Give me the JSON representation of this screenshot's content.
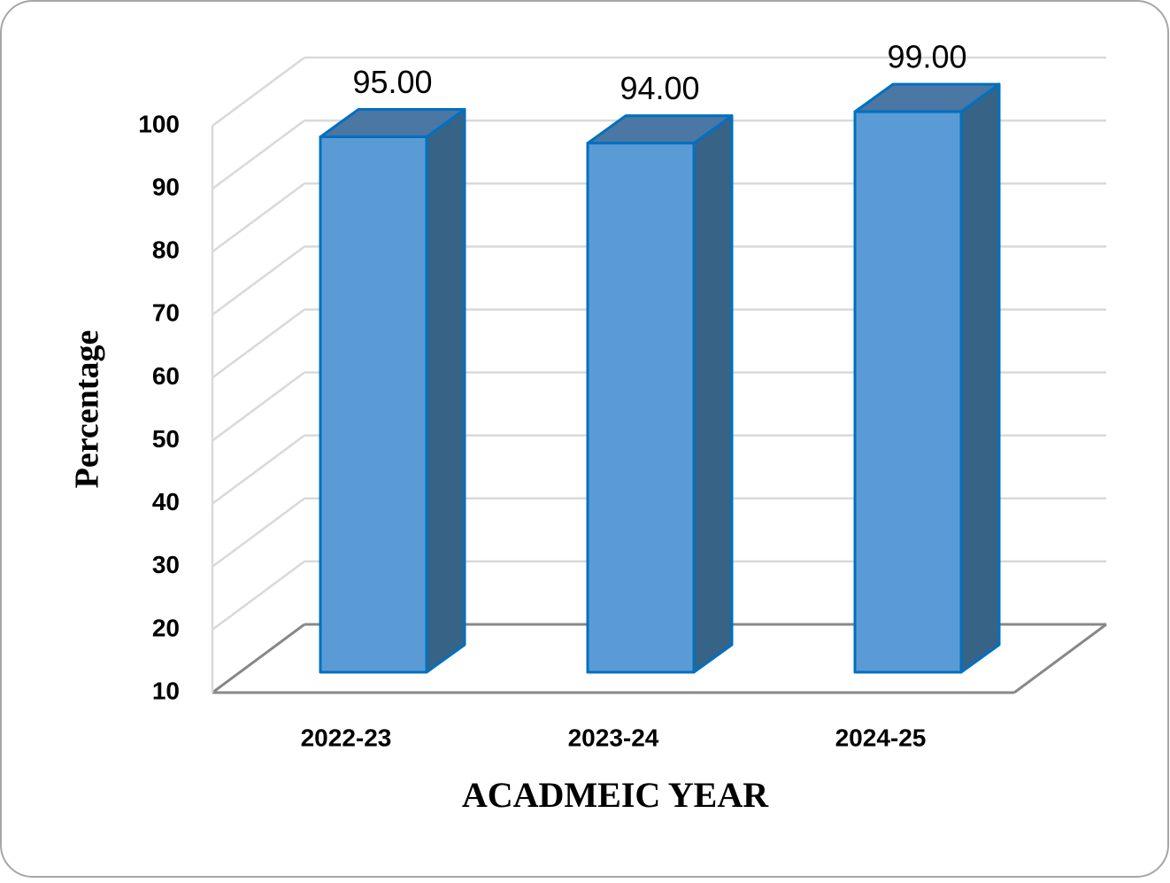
{
  "chart_data": {
    "type": "bar3d",
    "xlabel": "ACADMEIC YEAR",
    "ylabel": "Percentage",
    "categories": [
      "2022-23",
      "2023-24",
      "2024-25"
    ],
    "values": [
      95,
      94,
      99
    ],
    "value_labels": [
      "95.00",
      "94.00",
      "99.00"
    ],
    "color": "#5b9bd5",
    "ylim": [
      10,
      100
    ],
    "yticks": [
      10,
      20,
      30,
      40,
      50,
      60,
      70,
      80,
      90,
      100
    ],
    "grid": true
  }
}
